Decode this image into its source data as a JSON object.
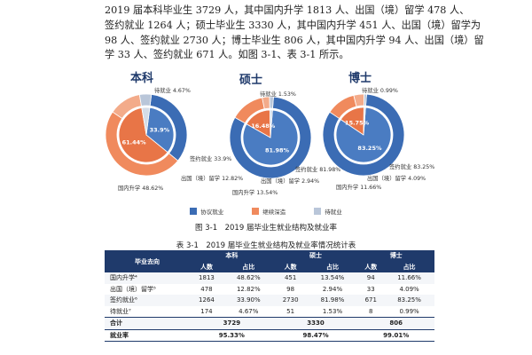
{
  "paragraph": [
    "2019 届本科毕业生 3729 人，其中国内升学 1813 人、出国（境）留学 478 人、",
    "签约就业 1264 人；硕士毕业生 3330 人，其中国内升学 451 人、出国（境）留学为",
    "98 人、签约就业 2730 人；博士毕业生 806 人，其中国内升学 94 人、出国（境）留",
    "学 33 人、签约就业 671 人。如图 3-1、表 3-1 所示。"
  ],
  "colors": {
    "signed": "#3b6cb4",
    "study": "#f08a5d",
    "waiting": "#b9c6d9",
    "header_bg": "#1f3a6b"
  },
  "chart_data": [
    {
      "type": "pie",
      "title": "本科",
      "outer": {
        "categories": [
          "签约就业",
          "国内升学",
          "出国（境）留学",
          "待就业"
        ],
        "values": [
          33.9,
          48.62,
          12.82,
          4.67
        ],
        "labels": [
          "签约就业 33.9%",
          "国内升学 48.62%",
          "出国（境）留学 12.82%",
          "待就业 4.67%"
        ]
      },
      "inner": {
        "categories": [
          "协议就业",
          "继续深造",
          "待就业"
        ],
        "values": [
          33.9,
          61.44,
          4.67
        ],
        "labels": [
          "33.9%",
          "61.44%",
          ""
        ]
      }
    },
    {
      "type": "pie",
      "title": "硕士",
      "outer": {
        "categories": [
          "签约就业",
          "国内升学",
          "出国（境）留学",
          "待就业"
        ],
        "values": [
          81.98,
          13.54,
          2.94,
          1.53
        ],
        "labels": [
          "签约就业 81.98%",
          "国内升学 13.54%",
          "出国（境）留学 2.94%",
          "待就业 1.53%"
        ]
      },
      "inner": {
        "categories": [
          "协议就业",
          "继续深造",
          "待就业"
        ],
        "values": [
          81.98,
          16.48,
          1.53
        ],
        "labels": [
          "81.98%",
          "16.48%",
          ""
        ]
      }
    },
    {
      "type": "pie",
      "title": "博士",
      "outer": {
        "categories": [
          "签约就业",
          "国内升学",
          "出国（境）留学",
          "待就业"
        ],
        "values": [
          83.25,
          11.66,
          4.09,
          0.99
        ],
        "labels": [
          "签约就业 83.25%",
          "国内升学 11.66%",
          "出国（境）留学 4.09%",
          "待就业 0.99%"
        ]
      },
      "inner": {
        "categories": [
          "协议就业",
          "继续深造",
          "待就业"
        ],
        "values": [
          83.25,
          15.75,
          0.99
        ],
        "labels": [
          "83.25%",
          "15.75%",
          ""
        ]
      }
    }
  ],
  "legend": [
    "协议就业",
    "继续深造",
    "待就业"
  ],
  "figure_caption": "图 3-1　2019 届毕业生就业结构及就业率",
  "table_caption": "表 3-1　2019 届毕业生就业结构及就业率情况统计表",
  "table": {
    "head_destination": "毕业去向",
    "groups": [
      "本科",
      "硕士",
      "博士"
    ],
    "sub": [
      "人数",
      "占比"
    ],
    "rows": [
      {
        "label": "国内升学⁴",
        "v": [
          "1813",
          "48.62%",
          "451",
          "13.54%",
          "94",
          "11.66%"
        ]
      },
      {
        "label": "出国（境）留学⁵",
        "v": [
          "478",
          "12.82%",
          "98",
          "2.94%",
          "33",
          "4.09%"
        ]
      },
      {
        "label": "签约就业⁶",
        "v": [
          "1264",
          "33.90%",
          "2730",
          "81.98%",
          "671",
          "83.25%"
        ]
      },
      {
        "label": "待就业⁷",
        "v": [
          "174",
          "4.67%",
          "51",
          "1.53%",
          "8",
          "0.99%"
        ]
      }
    ],
    "total_label": "合计",
    "totals": [
      "3729",
      "3330",
      "806"
    ],
    "rate_label": "就业率",
    "rates": [
      "95.33%",
      "98.47%",
      "99.01%"
    ]
  }
}
